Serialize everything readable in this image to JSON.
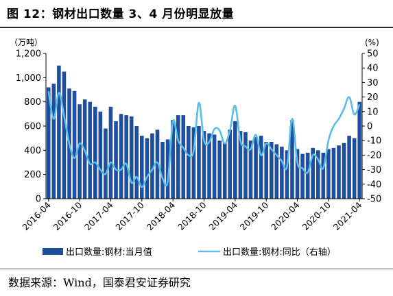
{
  "figure": {
    "title": "图 12：钢材出口数量 3、4 月份明显放量",
    "source": "数据来源：Wind，国泰君安证券研究"
  },
  "chart_data": {
    "type": "bar",
    "title": "图 12：钢材出口数量 3、4 月份明显放量",
    "y_left_unit": "（万吨）",
    "y_right_unit": "(%)",
    "ylim_left": [
      0,
      1200
    ],
    "ylim_right": [
      -50,
      50
    ],
    "yticks_left": [
      "0",
      "200",
      "400",
      "600",
      "800",
      "1,000",
      "1,200"
    ],
    "yticks_right": [
      "-50",
      "-40",
      "-30",
      "-20",
      "-10",
      "0",
      "10",
      "20",
      "30",
      "40",
      "50"
    ],
    "x_tick_labels": [
      "2016-04",
      "2016-10",
      "2017-04",
      "2017-10",
      "2018-04",
      "2018-10",
      "2019-04",
      "2019-10",
      "2020-04",
      "2020-10",
      "2021-04"
    ],
    "categories": [
      "2016-04",
      "2016-05",
      "2016-06",
      "2016-07",
      "2016-08",
      "2016-09",
      "2016-10",
      "2016-11",
      "2016-12",
      "2017-01",
      "2017-02",
      "2017-03",
      "2017-04",
      "2017-05",
      "2017-06",
      "2017-07",
      "2017-08",
      "2017-09",
      "2017-10",
      "2017-11",
      "2017-12",
      "2018-01",
      "2018-02",
      "2018-03",
      "2018-04",
      "2018-05",
      "2018-06",
      "2018-07",
      "2018-08",
      "2018-09",
      "2018-10",
      "2018-11",
      "2018-12",
      "2019-01",
      "2019-02",
      "2019-03",
      "2019-04",
      "2019-05",
      "2019-06",
      "2019-07",
      "2019-08",
      "2019-09",
      "2019-10",
      "2019-11",
      "2019-12",
      "2020-01",
      "2020-02",
      "2020-03",
      "2020-04",
      "2020-05",
      "2020-06",
      "2020-07",
      "2020-08",
      "2020-09",
      "2020-10",
      "2020-11",
      "2020-12",
      "2021-01",
      "2021-02",
      "2021-03",
      "2021-04"
    ],
    "series": [
      {
        "name": "出口数量:钢材:当月值",
        "type": "bar",
        "axis": "left",
        "color": "#1f4e9c",
        "values": [
          920,
          950,
          1100,
          1050,
          910,
          890,
          780,
          820,
          800,
          760,
          720,
          580,
          760,
          640,
          700,
          690,
          680,
          600,
          520,
          500,
          540,
          570,
          470,
          490,
          650,
          690,
          690,
          600,
          590,
          600,
          560,
          540,
          530,
          480,
          460,
          570,
          640,
          560,
          550,
          480,
          510,
          520,
          470,
          470,
          450,
          430,
          400,
          650,
          410,
          370,
          380,
          420,
          400,
          380,
          410,
          420,
          440,
          460,
          520,
          500,
          800
        ]
      },
      {
        "name": "出口数量:钢材:同比（右轴）",
        "type": "line",
        "axis": "right",
        "color": "#5bbde8",
        "values": [
          24,
          5,
          23,
          7,
          -12,
          -22,
          -12,
          -17,
          -26,
          -25,
          -30,
          -33,
          -25,
          -30,
          -30,
          -26,
          -39,
          -35,
          -42,
          -35,
          -30,
          -25,
          -36,
          -38,
          3,
          -10,
          -15,
          -20,
          -17,
          16,
          -10,
          -11,
          -2,
          -3,
          -12,
          -3,
          14,
          -10,
          -14,
          -16,
          -6,
          -20,
          -12,
          -16,
          -20,
          -24,
          -28,
          5,
          -25,
          -29,
          -32,
          -20,
          -23,
          -29,
          -10,
          0,
          5,
          12,
          20,
          8,
          15
        ]
      }
    ]
  }
}
